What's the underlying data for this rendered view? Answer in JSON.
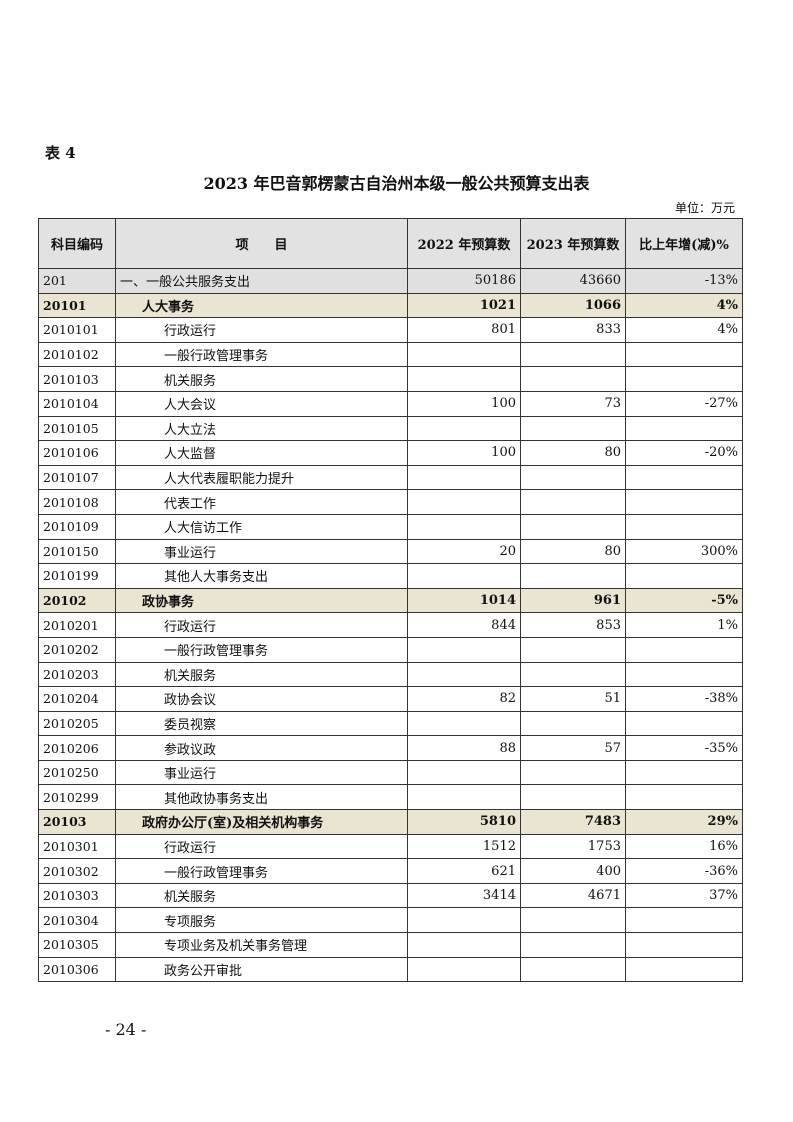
{
  "table_label": "表 4",
  "title": "2023 年巴音郭楞蒙古自治州本级一般公共预算支出表",
  "unit": "单位：万元",
  "columns": [
    "科目编码",
    "项　　目",
    "2022 年预算数",
    "2023 年预算数",
    "比上年增(减)%"
  ],
  "rows": [
    {
      "level": 0,
      "code": "201",
      "name": "一、一般公共服务支出",
      "y2022": "50186",
      "y2023": "43660",
      "change": "-13%"
    },
    {
      "level": 1,
      "code": "20101",
      "name": "人大事务",
      "y2022": "1021",
      "y2023": "1066",
      "change": "4%"
    },
    {
      "level": 2,
      "code": "2010101",
      "name": "行政运行",
      "y2022": "801",
      "y2023": "833",
      "change": "4%"
    },
    {
      "level": 2,
      "code": "2010102",
      "name": "一般行政管理事务",
      "y2022": "",
      "y2023": "",
      "change": ""
    },
    {
      "level": 2,
      "code": "2010103",
      "name": "机关服务",
      "y2022": "",
      "y2023": "",
      "change": ""
    },
    {
      "level": 2,
      "code": "2010104",
      "name": "人大会议",
      "y2022": "100",
      "y2023": "73",
      "change": "-27%"
    },
    {
      "level": 2,
      "code": "2010105",
      "name": "人大立法",
      "y2022": "",
      "y2023": "",
      "change": ""
    },
    {
      "level": 2,
      "code": "2010106",
      "name": "人大监督",
      "y2022": "100",
      "y2023": "80",
      "change": "-20%"
    },
    {
      "level": 2,
      "code": "2010107",
      "name": "人大代表履职能力提升",
      "y2022": "",
      "y2023": "",
      "change": ""
    },
    {
      "level": 2,
      "code": "2010108",
      "name": "代表工作",
      "y2022": "",
      "y2023": "",
      "change": ""
    },
    {
      "level": 2,
      "code": "2010109",
      "name": "人大信访工作",
      "y2022": "",
      "y2023": "",
      "change": ""
    },
    {
      "level": 2,
      "code": "2010150",
      "name": "事业运行",
      "y2022": "20",
      "y2023": "80",
      "change": "300%"
    },
    {
      "level": 2,
      "code": "2010199",
      "name": "其他人大事务支出",
      "y2022": "",
      "y2023": "",
      "change": ""
    },
    {
      "level": 1,
      "code": "20102",
      "name": "政协事务",
      "y2022": "1014",
      "y2023": "961",
      "change": "-5%"
    },
    {
      "level": 2,
      "code": "2010201",
      "name": "行政运行",
      "y2022": "844",
      "y2023": "853",
      "change": "1%"
    },
    {
      "level": 2,
      "code": "2010202",
      "name": "一般行政管理事务",
      "y2022": "",
      "y2023": "",
      "change": ""
    },
    {
      "level": 2,
      "code": "2010203",
      "name": "机关服务",
      "y2022": "",
      "y2023": "",
      "change": ""
    },
    {
      "level": 2,
      "code": "2010204",
      "name": "政协会议",
      "y2022": "82",
      "y2023": "51",
      "change": "-38%"
    },
    {
      "level": 2,
      "code": "2010205",
      "name": "委员视察",
      "y2022": "",
      "y2023": "",
      "change": ""
    },
    {
      "level": 2,
      "code": "2010206",
      "name": "参政议政",
      "y2022": "88",
      "y2023": "57",
      "change": "-35%"
    },
    {
      "level": 2,
      "code": "2010250",
      "name": "事业运行",
      "y2022": "",
      "y2023": "",
      "change": ""
    },
    {
      "level": 2,
      "code": "2010299",
      "name": "其他政协事务支出",
      "y2022": "",
      "y2023": "",
      "change": ""
    },
    {
      "level": 1,
      "code": "20103",
      "name": "政府办公厅(室)及相关机构事务",
      "y2022": "5810",
      "y2023": "7483",
      "change": "29%"
    },
    {
      "level": 2,
      "code": "2010301",
      "name": "行政运行",
      "y2022": "1512",
      "y2023": "1753",
      "change": "16%"
    },
    {
      "level": 2,
      "code": "2010302",
      "name": "一般行政管理事务",
      "y2022": "621",
      "y2023": "400",
      "change": "-36%"
    },
    {
      "level": 2,
      "code": "2010303",
      "name": "机关服务",
      "y2022": "3414",
      "y2023": "4671",
      "change": "37%"
    },
    {
      "level": 2,
      "code": "2010304",
      "name": "专项服务",
      "y2022": "",
      "y2023": "",
      "change": ""
    },
    {
      "level": 2,
      "code": "2010305",
      "name": "专项业务及机关事务管理",
      "y2022": "",
      "y2023": "",
      "change": ""
    },
    {
      "level": 2,
      "code": "2010306",
      "name": "政务公开审批",
      "y2022": "",
      "y2023": "",
      "change": ""
    }
  ],
  "page_number": "- 24 -"
}
